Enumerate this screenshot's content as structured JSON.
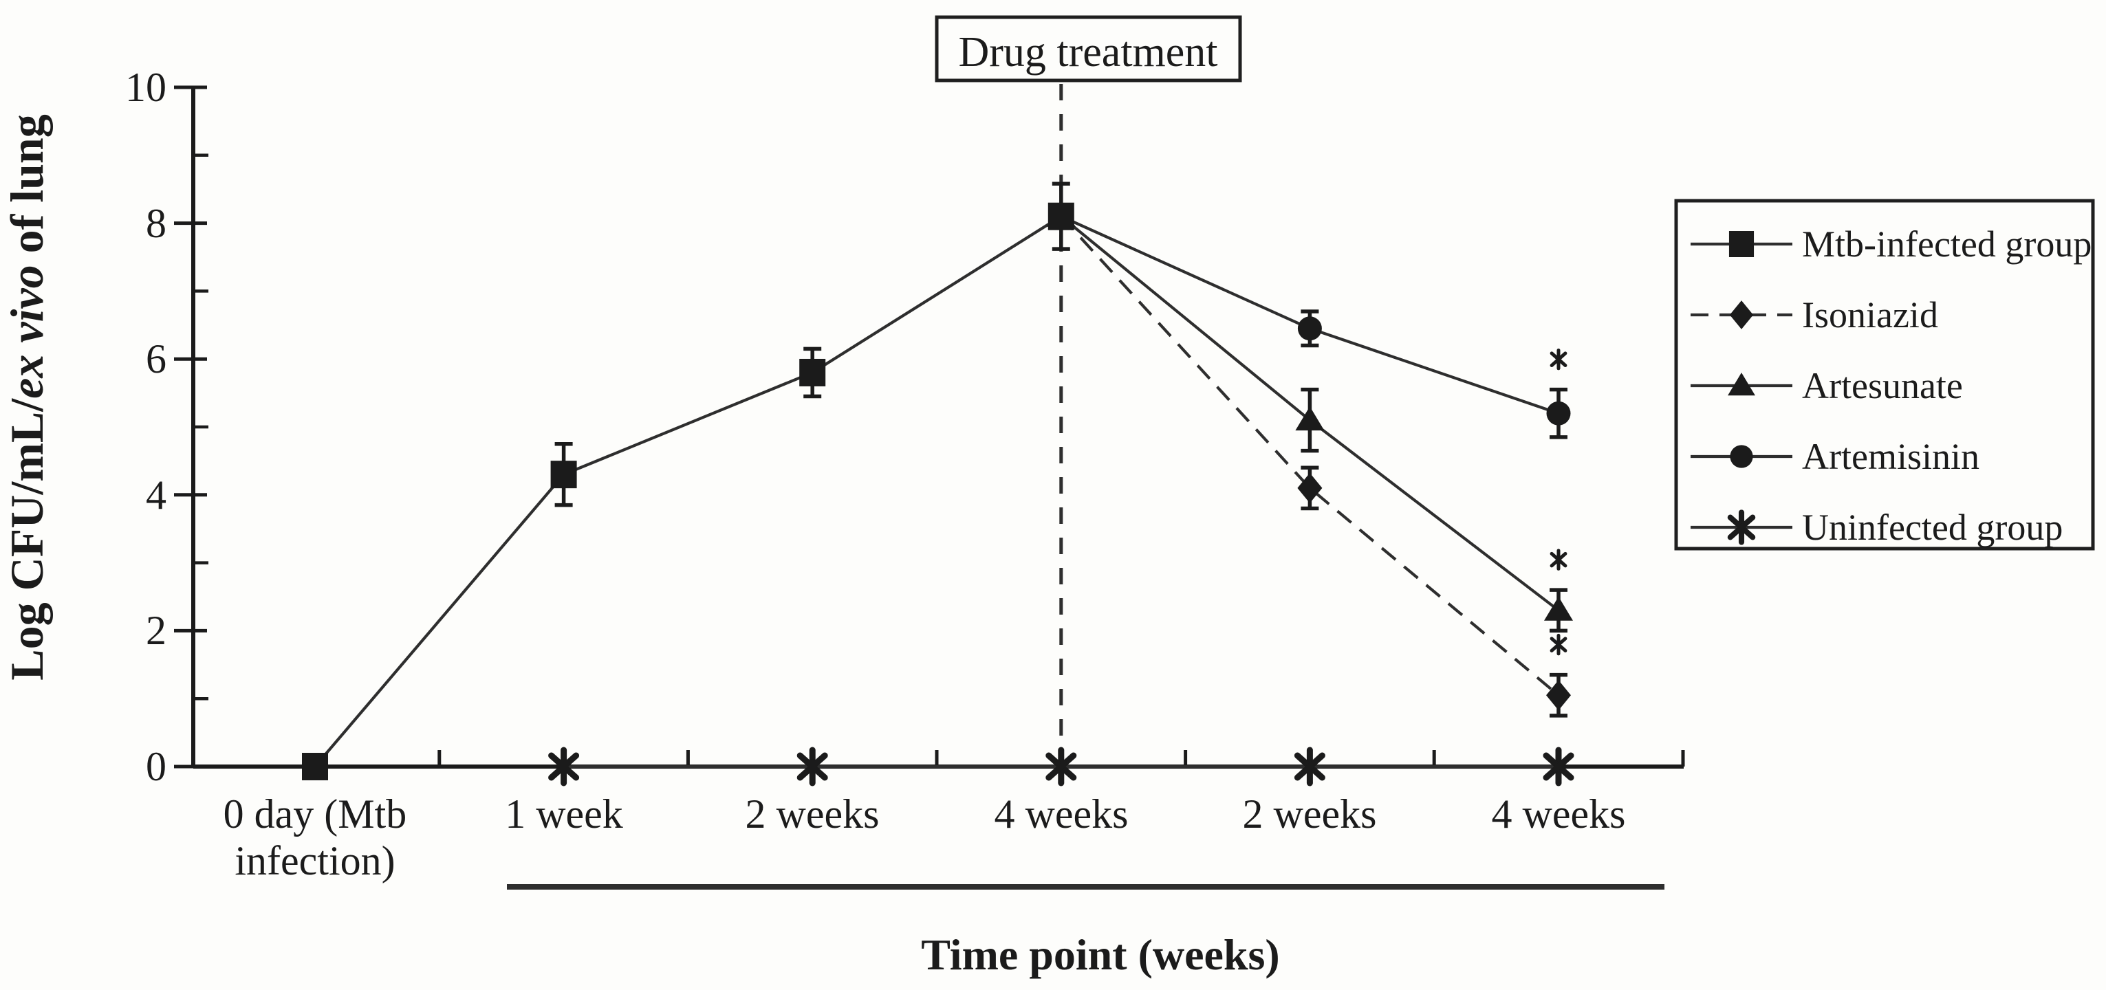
{
  "figure": {
    "background_color": "#fdfdfb",
    "ink_color": "#1b1b1b",
    "line_color": "#2e2e2e"
  },
  "chart_data": {
    "type": "line",
    "title": "",
    "xlabel": "Time point (weeks)",
    "ylabel": "Log CFU/mL/ex vivo of lung",
    "ylabel_parts": [
      {
        "text": "Log CFU/mL/",
        "italic": false
      },
      {
        "text": "ex vivo",
        "italic": true
      },
      {
        "text": " of lung",
        "italic": false
      }
    ],
    "ylim": [
      0,
      10
    ],
    "yticks": [
      0,
      2,
      4,
      6,
      8,
      10
    ],
    "yminorticks": [
      1,
      3,
      5,
      7,
      9
    ],
    "grid": false,
    "legend_position": "right",
    "categories": [
      [
        "0 day (Mtb",
        "infection)"
      ],
      [
        "1 week"
      ],
      [
        "2 weeks"
      ],
      [
        "4 weeks"
      ],
      [
        "2 weeks"
      ],
      [
        "4 weeks"
      ]
    ],
    "series": [
      {
        "name": "Mtb-infected group",
        "marker": "square",
        "linestyle": "solid",
        "points": [
          {
            "x": 0,
            "y": 0,
            "err": 0
          },
          {
            "x": 1,
            "y": 4.3,
            "err": 0.45
          },
          {
            "x": 2,
            "y": 5.8,
            "err": 0.35
          },
          {
            "x": 3,
            "y": 8.1,
            "err": 0.48
          }
        ]
      },
      {
        "name": "Isoniazid",
        "marker": "diamond",
        "linestyle": "dashed",
        "points": [
          {
            "x": 3,
            "y": 8.1,
            "err": 0
          },
          {
            "x": 4,
            "y": 4.1,
            "err": 0.3
          },
          {
            "x": 5,
            "y": 1.05,
            "err": 0.3
          }
        ]
      },
      {
        "name": "Artesunate",
        "marker": "triangle",
        "linestyle": "solid",
        "points": [
          {
            "x": 3,
            "y": 8.1,
            "err": 0
          },
          {
            "x": 4,
            "y": 5.1,
            "err": 0.45
          },
          {
            "x": 5,
            "y": 2.3,
            "err": 0.3
          }
        ]
      },
      {
        "name": "Artemisinin",
        "marker": "circle",
        "linestyle": "solid",
        "points": [
          {
            "x": 3,
            "y": 8.1,
            "err": 0
          },
          {
            "x": 4,
            "y": 6.45,
            "err": 0.25
          },
          {
            "x": 5,
            "y": 5.2,
            "err": 0.35
          }
        ]
      },
      {
        "name": "Uninfected group",
        "marker": "asterisk",
        "linestyle": "solid",
        "points": [
          {
            "x": 1,
            "y": 0,
            "err": 0
          },
          {
            "x": 2,
            "y": 0,
            "err": 0
          },
          {
            "x": 3,
            "y": 0,
            "err": 0
          },
          {
            "x": 4,
            "y": 0,
            "err": 0
          },
          {
            "x": 5,
            "y": 0,
            "err": 0
          }
        ]
      }
    ],
    "significance_markers": [
      {
        "series": "Artemisinin",
        "x": 5,
        "symbol": "*"
      },
      {
        "series": "Artesunate",
        "x": 5,
        "symbol": "*"
      },
      {
        "series": "Isoniazid",
        "x": 5,
        "symbol": "*"
      }
    ],
    "annotations": {
      "drug_treatment": {
        "label": "Drug treatment",
        "at_category": 3
      },
      "treatment_bracket": {
        "from_category": 1,
        "to_category": 5
      }
    }
  }
}
